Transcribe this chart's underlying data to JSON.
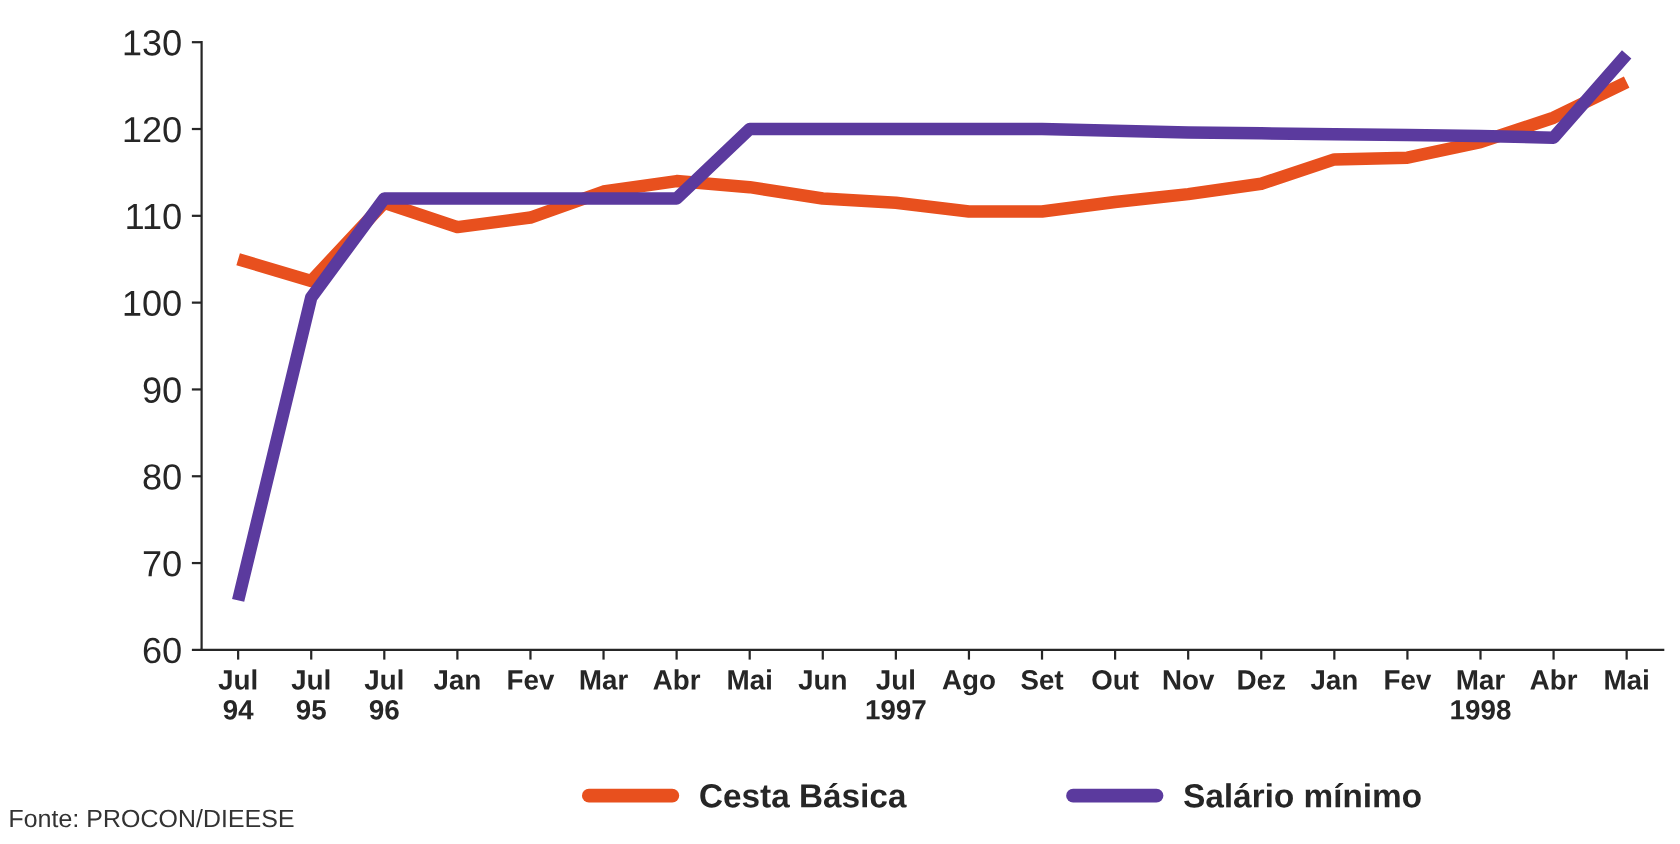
{
  "chart_data": {
    "type": "line",
    "categories": [
      "Jul\n94",
      "Jul\n95",
      "Jul\n96",
      "Jan",
      "Fev",
      "Mar",
      "Abr",
      "Mai",
      "Jun",
      "Jul\n1997",
      "Ago",
      "Set",
      "Out",
      "Nov",
      "Dez",
      "Jan",
      "Fev",
      "Mar\n1998",
      "Abr",
      "Mai"
    ],
    "series": [
      {
        "name": "Cesta Básica",
        "color": "#e8501e",
        "values": [
          105,
          102.5,
          111.5,
          108.7,
          109.8,
          112.8,
          114,
          113.3,
          112,
          111.5,
          110.5,
          110.5,
          111.6,
          112.5,
          113.7,
          116.5,
          116.7,
          118.5,
          121.3,
          125.4
        ]
      },
      {
        "name": "Salário mínimo",
        "color": "#5b3a9e",
        "values": [
          65.7,
          100.6,
          112,
          112,
          112,
          112,
          112,
          120,
          120,
          120,
          120,
          120,
          119.8,
          119.6,
          119.5,
          119.4,
          119.3,
          119.2,
          119,
          128.6
        ]
      }
    ],
    "ylim": [
      60,
      130
    ],
    "yticks": [
      60,
      70,
      80,
      90,
      100,
      110,
      120,
      130
    ],
    "grid": false,
    "legend": "bottom",
    "marker": "none",
    "line_style": "solid",
    "annotations": [
      "Fonte: PROCON/DIEESE"
    ]
  }
}
